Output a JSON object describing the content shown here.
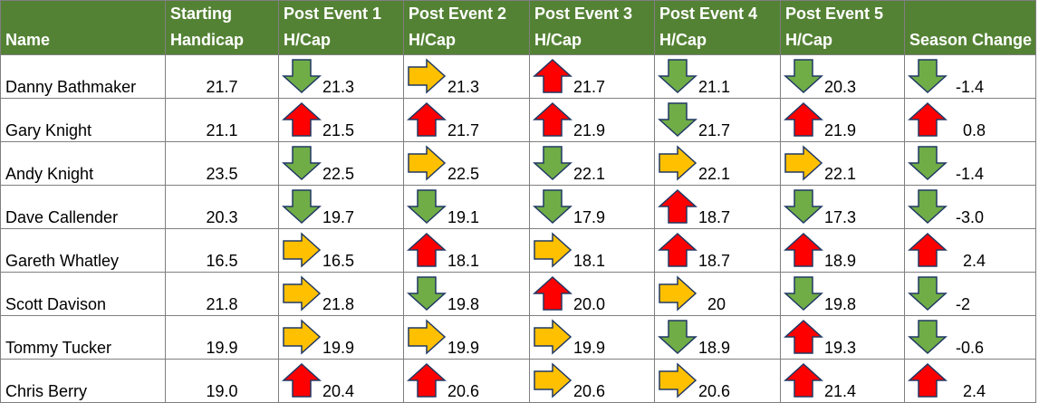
{
  "headers": {
    "name": "Name",
    "start_line1": "Starting",
    "start_line2": "Handicap",
    "events": [
      {
        "line1": "Post Event 1",
        "line2": "H/Cap"
      },
      {
        "line1": "Post Event 2",
        "line2": "H/Cap"
      },
      {
        "line1": "Post Event 3",
        "line2": "H/Cap"
      },
      {
        "line1": "Post Event 4",
        "line2": "H/Cap"
      },
      {
        "line1": "Post Event 5",
        "line2": "H/Cap"
      }
    ],
    "season": "Season Change"
  },
  "colors": {
    "header_bg": "#548235",
    "down_arrow": "#70ad47",
    "up_arrow": "#ff0000",
    "right_arrow": "#ffc000"
  },
  "rows": [
    {
      "name": "Danny Bathmaker",
      "start": "21.7",
      "events": [
        {
          "arrow": "down",
          "value": "21.3"
        },
        {
          "arrow": "right",
          "value": "21.3"
        },
        {
          "arrow": "up",
          "value": "21.7"
        },
        {
          "arrow": "down",
          "value": "21.1"
        },
        {
          "arrow": "down",
          "value": "20.3"
        }
      ],
      "season": {
        "arrow": "down",
        "value": "-1.4"
      }
    },
    {
      "name": "Gary Knight",
      "start": "21.1",
      "events": [
        {
          "arrow": "up",
          "value": "21.5"
        },
        {
          "arrow": "up",
          "value": "21.7"
        },
        {
          "arrow": "up",
          "value": "21.9"
        },
        {
          "arrow": "down",
          "value": "21.7"
        },
        {
          "arrow": "up",
          "value": "21.9"
        }
      ],
      "season": {
        "arrow": "up",
        "value": "0.8"
      }
    },
    {
      "name": "Andy Knight",
      "start": "23.5",
      "events": [
        {
          "arrow": "down",
          "value": "22.5"
        },
        {
          "arrow": "right",
          "value": "22.5"
        },
        {
          "arrow": "down",
          "value": "22.1"
        },
        {
          "arrow": "right",
          "value": "22.1"
        },
        {
          "arrow": "right",
          "value": "22.1"
        }
      ],
      "season": {
        "arrow": "down",
        "value": "-1.4"
      }
    },
    {
      "name": "Dave Callender",
      "start": "20.3",
      "events": [
        {
          "arrow": "down",
          "value": "19.7"
        },
        {
          "arrow": "down",
          "value": "19.1"
        },
        {
          "arrow": "down",
          "value": "17.9"
        },
        {
          "arrow": "up",
          "value": "18.7"
        },
        {
          "arrow": "down",
          "value": "17.3"
        }
      ],
      "season": {
        "arrow": "down",
        "value": "-3.0"
      }
    },
    {
      "name": "Gareth Whatley",
      "start": "16.5",
      "events": [
        {
          "arrow": "right",
          "value": "16.5"
        },
        {
          "arrow": "up",
          "value": "18.1"
        },
        {
          "arrow": "right",
          "value": "18.1"
        },
        {
          "arrow": "up",
          "value": "18.7"
        },
        {
          "arrow": "up",
          "value": "18.9"
        }
      ],
      "season": {
        "arrow": "up",
        "value": "2.4"
      }
    },
    {
      "name": "Scott Davison",
      "start": "21.8",
      "events": [
        {
          "arrow": "right",
          "value": "21.8"
        },
        {
          "arrow": "down",
          "value": "19.8"
        },
        {
          "arrow": "up",
          "value": "20.0"
        },
        {
          "arrow": "right",
          "value": "20"
        },
        {
          "arrow": "down",
          "value": "19.8"
        }
      ],
      "season": {
        "arrow": "down",
        "value": "-2"
      }
    },
    {
      "name": "Tommy Tucker",
      "start": "19.9",
      "events": [
        {
          "arrow": "right",
          "value": "19.9"
        },
        {
          "arrow": "right",
          "value": "19.9"
        },
        {
          "arrow": "right",
          "value": "19.9"
        },
        {
          "arrow": "down",
          "value": "18.9"
        },
        {
          "arrow": "up",
          "value": "19.3"
        }
      ],
      "season": {
        "arrow": "down",
        "value": "-0.6"
      }
    },
    {
      "name": "Chris Berry",
      "start": "19.0",
      "events": [
        {
          "arrow": "up",
          "value": "20.4"
        },
        {
          "arrow": "up",
          "value": "20.6"
        },
        {
          "arrow": "right",
          "value": "20.6"
        },
        {
          "arrow": "right",
          "value": "20.6"
        },
        {
          "arrow": "up",
          "value": "21.4"
        }
      ],
      "season": {
        "arrow": "up",
        "value": "2.4"
      }
    }
  ]
}
